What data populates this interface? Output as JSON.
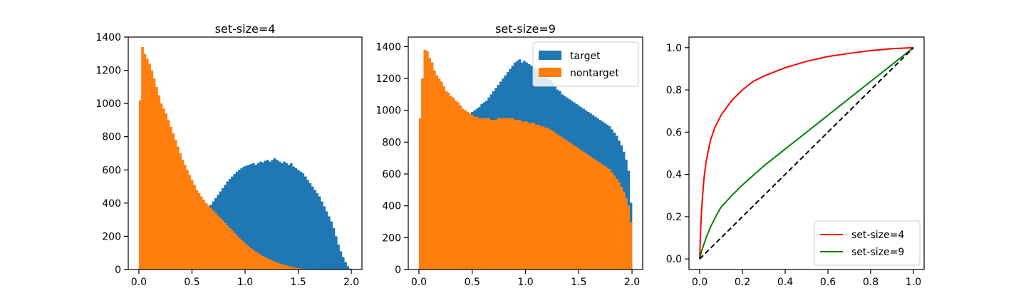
{
  "chart_data": [
    {
      "type": "histogram",
      "title": "set-size=4",
      "xlim": [
        -0.1,
        2.1
      ],
      "ylim": [
        0,
        1400
      ],
      "xticks": [
        0.0,
        0.5,
        1.0,
        1.5,
        2.0
      ],
      "xtick_labels": [
        "0.0",
        "0.5",
        "1.0",
        "1.5",
        "2.0"
      ],
      "yticks": [
        0,
        200,
        400,
        600,
        800,
        1000,
        1200,
        1400
      ],
      "ytick_labels": [
        "0",
        "200",
        "400",
        "600",
        "800",
        "1000",
        "1200",
        "1400"
      ],
      "bin_range": [
        0,
        2
      ],
      "series": [
        {
          "color": "#1f77b4",
          "values": [
            20,
            30,
            40,
            55,
            75,
            100,
            120,
            130,
            150,
            165,
            175,
            200,
            215,
            225,
            235,
            250,
            260,
            270,
            275,
            285,
            290,
            300,
            305,
            300,
            320,
            330,
            340,
            350,
            360,
            375,
            390,
            410,
            430,
            450,
            470,
            490,
            510,
            530,
            545,
            560,
            575,
            590,
            600,
            610,
            620,
            625,
            630,
            635,
            640,
            630,
            640,
            650,
            645,
            655,
            660,
            650,
            660,
            670,
            660,
            650,
            640,
            650,
            640,
            630,
            640,
            620,
            610,
            600,
            590,
            580,
            560,
            540,
            520,
            500,
            480,
            460,
            440,
            410,
            380,
            350,
            320,
            290,
            250,
            200,
            150,
            110,
            75,
            45,
            20,
            5
          ]
        },
        {
          "color": "#ff7f0e",
          "values": [
            1020,
            1340,
            1300,
            1270,
            1240,
            1200,
            1150,
            1100,
            1050,
            1000,
            970,
            940,
            900,
            860,
            820,
            780,
            740,
            700,
            660,
            630,
            600,
            570,
            540,
            510,
            480,
            460,
            440,
            420,
            400,
            385,
            370,
            355,
            340,
            325,
            310,
            295,
            280,
            265,
            250,
            235,
            220,
            205,
            190,
            178,
            165,
            152,
            140,
            128,
            118,
            108,
            98,
            90,
            82,
            74,
            66,
            60,
            54,
            48,
            42,
            37,
            32,
            28,
            24,
            20,
            17,
            14,
            11,
            9,
            7,
            5,
            4,
            3,
            2,
            1,
            1,
            0,
            0,
            0,
            0,
            0,
            0,
            0,
            0,
            0,
            0,
            0,
            0,
            0,
            0,
            0
          ]
        }
      ]
    },
    {
      "type": "histogram",
      "title": "set-size=9",
      "xlim": [
        -0.1,
        2.1
      ],
      "ylim": [
        0,
        1460
      ],
      "xticks": [
        0.0,
        0.5,
        1.0,
        1.5,
        2.0
      ],
      "xtick_labels": [
        "0.0",
        "0.5",
        "1.0",
        "1.5",
        "2.0"
      ],
      "yticks": [
        0,
        200,
        400,
        600,
        800,
        1000,
        1200,
        1400
      ],
      "ytick_labels": [
        "0",
        "200",
        "400",
        "600",
        "800",
        "1000",
        "1200",
        "1400"
      ],
      "bin_range": [
        0,
        2
      ],
      "legend": {
        "position": "top-right",
        "entries": [
          {
            "label": "target",
            "color": "#1f77b4"
          },
          {
            "label": "nontarget",
            "color": "#ff7f0e"
          }
        ]
      },
      "series": [
        {
          "name": "target",
          "color": "#1f77b4",
          "values": [
            950,
            1200,
            1380,
            1370,
            1330,
            1300,
            1250,
            1220,
            1200,
            1180,
            1150,
            1120,
            1110,
            1090,
            1080,
            1060,
            1050,
            1030,
            1010,
            1000,
            990,
            980,
            990,
            1000,
            1010,
            1020,
            1040,
            1050,
            1060,
            1080,
            1100,
            1120,
            1140,
            1160,
            1180,
            1200,
            1220,
            1240,
            1260,
            1280,
            1300,
            1310,
            1320,
            1300,
            1310,
            1300,
            1290,
            1280,
            1270,
            1260,
            1250,
            1240,
            1230,
            1210,
            1200,
            1190,
            1170,
            1150,
            1130,
            1120,
            1100,
            1090,
            1080,
            1070,
            1060,
            1050,
            1040,
            1030,
            1020,
            1010,
            1000,
            990,
            980,
            970,
            960,
            950,
            940,
            930,
            920,
            910,
            900,
            880,
            860,
            840,
            810,
            780,
            740,
            690,
            620,
            420
          ]
        },
        {
          "name": "nontarget",
          "color": "#ff7f0e",
          "values": [
            950,
            1200,
            1380,
            1370,
            1330,
            1300,
            1250,
            1220,
            1200,
            1180,
            1150,
            1120,
            1110,
            1090,
            1080,
            1060,
            1050,
            1030,
            1010,
            1000,
            990,
            980,
            970,
            960,
            960,
            950,
            950,
            950,
            950,
            950,
            940,
            940,
            940,
            950,
            950,
            950,
            950,
            950,
            950,
            950,
            940,
            940,
            940,
            930,
            930,
            930,
            920,
            920,
            920,
            910,
            910,
            900,
            900,
            890,
            890,
            880,
            870,
            860,
            850,
            840,
            830,
            820,
            810,
            800,
            790,
            780,
            770,
            760,
            750,
            740,
            730,
            720,
            710,
            700,
            690,
            680,
            670,
            660,
            650,
            640,
            630,
            610,
            590,
            570,
            550,
            520,
            490,
            450,
            400,
            300
          ]
        }
      ]
    },
    {
      "type": "line",
      "xlim": [
        -0.05,
        1.05
      ],
      "ylim": [
        -0.05,
        1.05
      ],
      "xticks": [
        0.0,
        0.2,
        0.4,
        0.6,
        0.8,
        1.0
      ],
      "xtick_labels": [
        "0.0",
        "0.2",
        "0.4",
        "0.6",
        "0.8",
        "1.0"
      ],
      "yticks": [
        0.0,
        0.2,
        0.4,
        0.6,
        0.8,
        1.0
      ],
      "ytick_labels": [
        "0.0",
        "0.2",
        "0.4",
        "0.6",
        "0.8",
        "1.0"
      ],
      "legend": {
        "position": "bottom-right",
        "entries": [
          {
            "label": "set-size=4",
            "color": "#ff0000"
          },
          {
            "label": "set-size=9",
            "color": "#008000"
          }
        ]
      },
      "series": [
        {
          "name": "set-size=4",
          "color": "#ff0000",
          "x": [
            0,
            0.005,
            0.01,
            0.02,
            0.03,
            0.05,
            0.07,
            0.1,
            0.15,
            0.2,
            0.25,
            0.3,
            0.4,
            0.5,
            0.6,
            0.7,
            0.8,
            0.9,
            1.0
          ],
          "y": [
            0,
            0.15,
            0.25,
            0.38,
            0.46,
            0.56,
            0.62,
            0.68,
            0.75,
            0.8,
            0.84,
            0.865,
            0.905,
            0.935,
            0.958,
            0.973,
            0.986,
            0.995,
            1.0
          ]
        },
        {
          "name": "set-size=9",
          "color": "#008000",
          "x": [
            0,
            0.01,
            0.03,
            0.05,
            0.08,
            0.1,
            0.15,
            0.2,
            0.3,
            0.4,
            0.5,
            0.6,
            0.7,
            0.8,
            0.9,
            1.0
          ],
          "y": [
            0,
            0.04,
            0.1,
            0.15,
            0.21,
            0.245,
            0.3,
            0.35,
            0.44,
            0.52,
            0.6,
            0.68,
            0.76,
            0.84,
            0.92,
            1.0
          ]
        },
        {
          "color": "#000000",
          "style": "dashed",
          "x": [
            0,
            1
          ],
          "y": [
            0,
            1
          ]
        }
      ]
    }
  ]
}
